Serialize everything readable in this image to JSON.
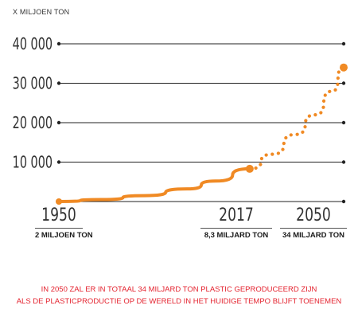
{
  "chart_data": {
    "type": "line",
    "y_unit": "X MILJOEN TON",
    "y_ticks": [
      "40 000",
      "30 000",
      "20 000",
      "10 000"
    ],
    "y_tick_values": [
      40000,
      30000,
      20000,
      10000
    ],
    "ylim": [
      0,
      40000
    ],
    "xlim": [
      1950,
      2050
    ],
    "grid": true,
    "color": "#f08a24",
    "series": [
      {
        "style": "solid",
        "x": [
          1950,
          1965,
          1980,
          1995,
          2005,
          2017
        ],
        "y": [
          2,
          500,
          1500,
          3200,
          5200,
          8300
        ]
      },
      {
        "style": "dotted",
        "x": [
          2017,
          2025,
          2033,
          2040,
          2046,
          2050
        ],
        "y": [
          8300,
          12000,
          17000,
          22000,
          28000,
          34000
        ]
      }
    ],
    "markers": [
      {
        "x": 1950,
        "y": 2
      },
      {
        "x": 2017,
        "y": 8300
      },
      {
        "x": 2050,
        "y": 34000
      }
    ],
    "x_labels": [
      {
        "year": "1950",
        "amount": "2 MILJOEN TON"
      },
      {
        "year": "2017",
        "amount": "8,3 MILJARD TON"
      },
      {
        "year": "2050",
        "amount": "34 MILJARD TON"
      }
    ]
  },
  "footnote": {
    "line1": "IN 2050 ZAL ER IN TOTAAL 34 MILJARD TON PLASTIC GEPRODUCEERD ZIJN",
    "line2": "ALS DE PLASTICPRODUCTIE OP DE WERELD IN HET HUIDIGE TEMPO BLIJFT TOENEMEN"
  }
}
